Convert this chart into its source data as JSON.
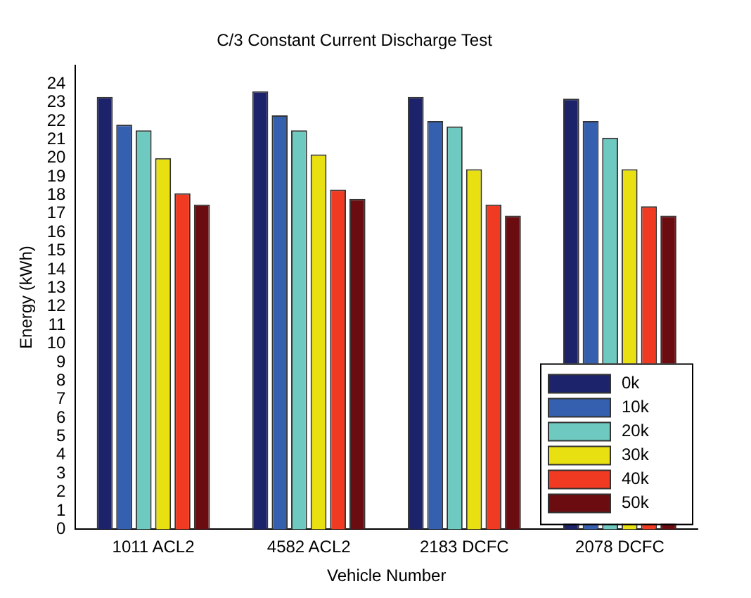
{
  "chart_data": {
    "type": "bar",
    "title": "C/3 Constant Current Discharge Test",
    "xlabel": "Vehicle Number",
    "ylabel": "Energy (kWh)",
    "categories": [
      "1011 ACL2",
      "4582 ACL2",
      "2183 DCFC",
      "2078 DCFC"
    ],
    "series": [
      {
        "name": "0k",
        "color": "#1c236b",
        "values": [
          23.3,
          23.6,
          23.3,
          23.2
        ]
      },
      {
        "name": "10k",
        "color": "#3560b0",
        "values": [
          21.8,
          22.3,
          22.0,
          22.0
        ]
      },
      {
        "name": "20k",
        "color": "#6ecac0",
        "values": [
          21.5,
          21.5,
          21.7,
          21.1
        ]
      },
      {
        "name": "30k",
        "color": "#e8e010",
        "values": [
          20.0,
          20.2,
          19.4,
          19.4
        ]
      },
      {
        "name": "40k",
        "color": "#f03a22",
        "values": [
          18.1,
          18.3,
          17.5,
          17.4
        ]
      },
      {
        "name": "50k",
        "color": "#6b0c10",
        "values": [
          17.5,
          17.8,
          16.9,
          16.9
        ]
      }
    ],
    "ylim": [
      0,
      25
    ],
    "yticks": [
      0,
      1,
      2,
      3,
      4,
      5,
      6,
      7,
      8,
      9,
      10,
      11,
      12,
      13,
      14,
      15,
      16,
      17,
      18,
      19,
      20,
      21,
      22,
      23,
      24
    ],
    "grid": false,
    "legend": "bottom right"
  }
}
